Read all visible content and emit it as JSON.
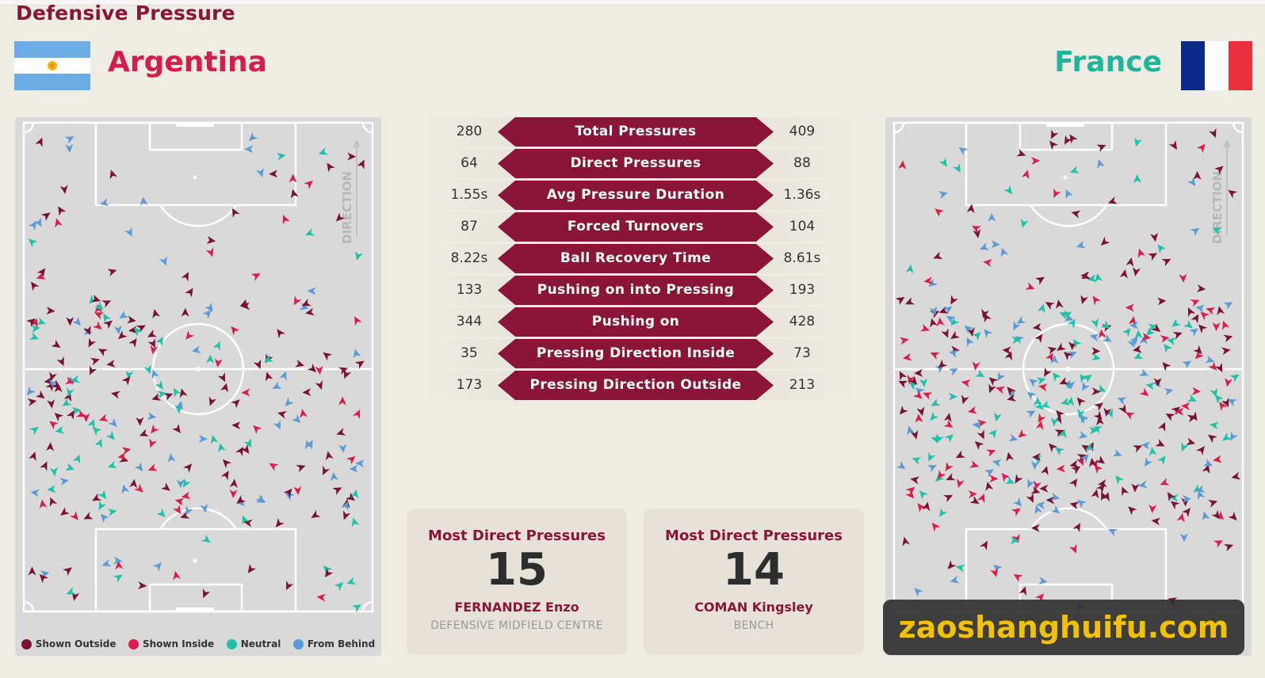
{
  "title": "Defensive Pressure",
  "teams": {
    "home": "Argentina",
    "away": "France"
  },
  "colors": {
    "maroon": "#8a1538",
    "shown_outside": "#7a1234",
    "shown_inside": "#dc1d4b",
    "neutral": "#1fc1a8",
    "from_behind": "#5b9bd5",
    "pitch": "#d9d9d9"
  },
  "direction_label": "DIRECTION",
  "legend": [
    "Shown Outside",
    "Shown Inside",
    "Neutral",
    "From Behind"
  ],
  "stats": [
    {
      "label": "Total Pressures",
      "home": "280",
      "away": "409"
    },
    {
      "label": "Direct Pressures",
      "home": "64",
      "away": "88"
    },
    {
      "label": "Avg Pressure Duration",
      "home": "1.55s",
      "away": "1.36s"
    },
    {
      "label": "Forced Turnovers",
      "home": "87",
      "away": "104"
    },
    {
      "label": "Ball Recovery Time",
      "home": "8.22s",
      "away": "8.61s"
    },
    {
      "label": "Pushing on into Pressing",
      "home": "133",
      "away": "193"
    },
    {
      "label": "Pushing on",
      "home": "344",
      "away": "428"
    },
    {
      "label": "Pressing Direction Inside",
      "home": "35",
      "away": "73"
    },
    {
      "label": "Pressing Direction Outside",
      "home": "173",
      "away": "213"
    }
  ],
  "cards": [
    {
      "heading": "Most Direct Pressures",
      "number": "15",
      "player": "FERNANDEZ Enzo",
      "role": "DEFENSIVE MIDFIELD CENTRE"
    },
    {
      "heading": "Most Direct Pressures",
      "number": "14",
      "player": "COMAN Kingsley",
      "role": "BENCH"
    }
  ],
  "watermark": "zaoshanghuifu.com",
  "chart_data": {
    "type": "table",
    "categories": [
      "Total Pressures",
      "Direct Pressures",
      "Avg Pressure Duration",
      "Forced Turnovers",
      "Ball Recovery Time",
      "Pushing on into Pressing",
      "Pushing on",
      "Pressing Direction Inside",
      "Pressing Direction Outside"
    ],
    "series": [
      {
        "name": "Argentina",
        "values": [
          "280",
          "64",
          "1.55s",
          "87",
          "8.22s",
          "133",
          "344",
          "35",
          "173"
        ]
      },
      {
        "name": "France",
        "values": [
          "409",
          "88",
          "1.36s",
          "104",
          "8.61s",
          "193",
          "428",
          "73",
          "213"
        ]
      }
    ],
    "title": "Defensive Pressure"
  }
}
